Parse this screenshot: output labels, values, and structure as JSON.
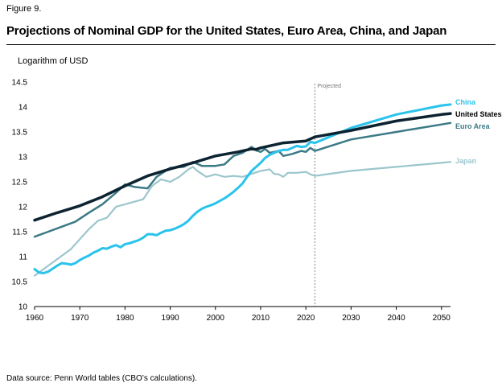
{
  "figure_label": "Figure 9.",
  "title": "Projections of Nominal GDP for the United States, Euro Area, China, and Japan",
  "source": "Data source: Penn World tables (CBO’s calculations).",
  "chart_data": {
    "type": "line",
    "ylabel": "Logarithm of USD",
    "xlim": [
      1960,
      2052
    ],
    "ylim": [
      10,
      14.5
    ],
    "x_ticks": [
      1960,
      1970,
      1980,
      1990,
      2000,
      2010,
      2020,
      2030,
      2040,
      2050
    ],
    "y_ticks": [
      10,
      10.5,
      11,
      11.5,
      12,
      12.5,
      13,
      13.5,
      14,
      14.5
    ],
    "y_tick_labels": [
      "10",
      "10.5",
      "11",
      "11.5",
      "12",
      "12.5",
      "13",
      "13.5",
      "14",
      "14.5"
    ],
    "projection_start": 2022,
    "projection_label": "Projected",
    "grid": false,
    "series": [
      {
        "name": "China",
        "color": "#29c3ec",
        "width": 3,
        "points": [
          [
            1960,
            10.75
          ],
          [
            1961,
            10.68
          ],
          [
            1962,
            10.67
          ],
          [
            1963,
            10.7
          ],
          [
            1964,
            10.76
          ],
          [
            1965,
            10.82
          ],
          [
            1966,
            10.87
          ],
          [
            1967,
            10.86
          ],
          [
            1968,
            10.84
          ],
          [
            1969,
            10.87
          ],
          [
            1970,
            10.93
          ],
          [
            1971,
            10.98
          ],
          [
            1972,
            11.02
          ],
          [
            1973,
            11.08
          ],
          [
            1974,
            11.12
          ],
          [
            1975,
            11.17
          ],
          [
            1976,
            11.16
          ],
          [
            1977,
            11.2
          ],
          [
            1978,
            11.23
          ],
          [
            1979,
            11.19
          ],
          [
            1980,
            11.25
          ],
          [
            1981,
            11.27
          ],
          [
            1982,
            11.3
          ],
          [
            1983,
            11.33
          ],
          [
            1984,
            11.38
          ],
          [
            1985,
            11.45
          ],
          [
            1986,
            11.45
          ],
          [
            1987,
            11.43
          ],
          [
            1988,
            11.48
          ],
          [
            1989,
            11.52
          ],
          [
            1990,
            11.53
          ],
          [
            1991,
            11.56
          ],
          [
            1992,
            11.6
          ],
          [
            1993,
            11.65
          ],
          [
            1994,
            11.72
          ],
          [
            1995,
            11.82
          ],
          [
            1996,
            11.9
          ],
          [
            1997,
            11.96
          ],
          [
            1998,
            12.0
          ],
          [
            1999,
            12.03
          ],
          [
            2000,
            12.07
          ],
          [
            2001,
            12.12
          ],
          [
            2002,
            12.17
          ],
          [
            2003,
            12.23
          ],
          [
            2004,
            12.3
          ],
          [
            2005,
            12.38
          ],
          [
            2006,
            12.47
          ],
          [
            2007,
            12.6
          ],
          [
            2008,
            12.72
          ],
          [
            2009,
            12.8
          ],
          [
            2010,
            12.88
          ],
          [
            2011,
            12.98
          ],
          [
            2012,
            13.04
          ],
          [
            2013,
            13.08
          ],
          [
            2014,
            13.12
          ],
          [
            2015,
            13.14
          ],
          [
            2016,
            13.14
          ],
          [
            2017,
            13.18
          ],
          [
            2018,
            13.22
          ],
          [
            2019,
            13.2
          ],
          [
            2020,
            13.21
          ],
          [
            2021,
            13.3
          ],
          [
            2022,
            13.28
          ],
          [
            2030,
            13.58
          ],
          [
            2040,
            13.85
          ],
          [
            2050,
            14.03
          ],
          [
            2052,
            14.05
          ]
        ]
      },
      {
        "name": "United States",
        "color": "#0c2331",
        "width": 3.5,
        "points": [
          [
            1960,
            11.73
          ],
          [
            1965,
            11.88
          ],
          [
            1970,
            12.02
          ],
          [
            1975,
            12.2
          ],
          [
            1980,
            12.42
          ],
          [
            1985,
            12.62
          ],
          [
            1990,
            12.76
          ],
          [
            1995,
            12.88
          ],
          [
            2000,
            13.02
          ],
          [
            2005,
            13.1
          ],
          [
            2008,
            13.16
          ],
          [
            2009,
            13.15
          ],
          [
            2010,
            13.18
          ],
          [
            2015,
            13.28
          ],
          [
            2020,
            13.32
          ],
          [
            2022,
            13.4
          ],
          [
            2030,
            13.53
          ],
          [
            2040,
            13.72
          ],
          [
            2050,
            13.85
          ],
          [
            2052,
            13.87
          ]
        ]
      },
      {
        "name": "Euro Area",
        "color": "#3c7a86",
        "width": 2.5,
        "points": [
          [
            1960,
            11.4
          ],
          [
            1963,
            11.5
          ],
          [
            1966,
            11.6
          ],
          [
            1969,
            11.7
          ],
          [
            1972,
            11.88
          ],
          [
            1975,
            12.05
          ],
          [
            1978,
            12.28
          ],
          [
            1980,
            12.45
          ],
          [
            1982,
            12.4
          ],
          [
            1985,
            12.37
          ],
          [
            1987,
            12.6
          ],
          [
            1990,
            12.78
          ],
          [
            1993,
            12.8
          ],
          [
            1995,
            12.9
          ],
          [
            1997,
            12.82
          ],
          [
            2000,
            12.82
          ],
          [
            2002,
            12.85
          ],
          [
            2004,
            13.02
          ],
          [
            2006,
            13.08
          ],
          [
            2008,
            13.2
          ],
          [
            2009,
            13.13
          ],
          [
            2010,
            13.1
          ],
          [
            2011,
            13.16
          ],
          [
            2012,
            13.08
          ],
          [
            2014,
            13.12
          ],
          [
            2015,
            13.02
          ],
          [
            2017,
            13.06
          ],
          [
            2019,
            13.12
          ],
          [
            2020,
            13.1
          ],
          [
            2021,
            13.18
          ],
          [
            2022,
            13.12
          ],
          [
            2030,
            13.35
          ],
          [
            2040,
            13.5
          ],
          [
            2050,
            13.65
          ],
          [
            2052,
            13.68
          ]
        ]
      },
      {
        "name": "Japan",
        "color": "#9bc6cc",
        "width": 2.2,
        "points": [
          [
            1960,
            10.62
          ],
          [
            1962,
            10.75
          ],
          [
            1965,
            10.95
          ],
          [
            1968,
            11.15
          ],
          [
            1970,
            11.35
          ],
          [
            1972,
            11.55
          ],
          [
            1974,
            11.72
          ],
          [
            1976,
            11.78
          ],
          [
            1978,
            12.0
          ],
          [
            1980,
            12.05
          ],
          [
            1982,
            12.1
          ],
          [
            1984,
            12.15
          ],
          [
            1986,
            12.42
          ],
          [
            1988,
            12.55
          ],
          [
            1990,
            12.5
          ],
          [
            1992,
            12.6
          ],
          [
            1994,
            12.75
          ],
          [
            1995,
            12.8
          ],
          [
            1996,
            12.72
          ],
          [
            1998,
            12.6
          ],
          [
            2000,
            12.65
          ],
          [
            2002,
            12.6
          ],
          [
            2004,
            12.62
          ],
          [
            2006,
            12.6
          ],
          [
            2008,
            12.66
          ],
          [
            2010,
            12.72
          ],
          [
            2012,
            12.75
          ],
          [
            2013,
            12.66
          ],
          [
            2014,
            12.65
          ],
          [
            2015,
            12.6
          ],
          [
            2016,
            12.68
          ],
          [
            2018,
            12.68
          ],
          [
            2020,
            12.7
          ],
          [
            2021,
            12.65
          ],
          [
            2022,
            12.62
          ],
          [
            2030,
            12.72
          ],
          [
            2040,
            12.8
          ],
          [
            2050,
            12.88
          ],
          [
            2052,
            12.9
          ]
        ]
      }
    ]
  }
}
